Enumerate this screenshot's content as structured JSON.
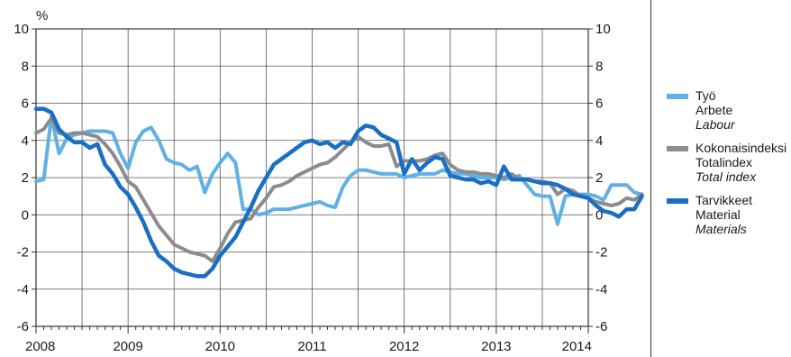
{
  "chart_data": {
    "type": "line",
    "unit": "%",
    "ylim": [
      -6,
      10
    ],
    "y_ticks": [
      -6,
      -4,
      -2,
      0,
      2,
      4,
      6,
      8,
      10
    ],
    "x_tick_labels": [
      "2008",
      "2009",
      "2010",
      "2011",
      "2012",
      "2013",
      "2014"
    ],
    "x_start_year": 2008,
    "months_per_point": 1,
    "grid": true,
    "legend_position": "right",
    "series": [
      {
        "id": "labour",
        "name": "Työ",
        "name_sv": "Arbete",
        "name_en": "Labour",
        "color": "#5fb0e6",
        "values": [
          1.8,
          1.9,
          5.3,
          3.3,
          4.1,
          4.3,
          4.4,
          4.5,
          4.5,
          4.5,
          4.4,
          3.3,
          2.5,
          3.9,
          4.5,
          4.7,
          4.0,
          3.0,
          2.8,
          2.7,
          2.4,
          2.6,
          1.2,
          2.2,
          2.8,
          3.3,
          2.8,
          0.3,
          0.3,
          0.0,
          0.1,
          0.3,
          0.3,
          0.3,
          0.4,
          0.5,
          0.6,
          0.7,
          0.5,
          0.4,
          1.5,
          2.1,
          2.4,
          2.4,
          2.3,
          2.2,
          2.2,
          2.2,
          2.0,
          2.1,
          2.2,
          2.2,
          2.2,
          2.4,
          2.3,
          2.2,
          2.2,
          2.1,
          2.0,
          2.0,
          2.0,
          1.9,
          2.0,
          2.1,
          1.6,
          1.1,
          1.0,
          1.0,
          -0.5,
          1.0,
          1.1,
          1.1,
          1.1,
          1.0,
          0.8,
          1.6,
          1.6,
          1.6,
          1.2,
          1.1
        ]
      },
      {
        "id": "total",
        "name": "Kokonaisindeksi",
        "name_sv": "Totalindex",
        "name_en": "Total index",
        "color": "#8c8c8c",
        "values": [
          4.4,
          4.6,
          5.2,
          4.4,
          4.3,
          4.4,
          4.4,
          4.3,
          4.2,
          3.8,
          3.3,
          2.6,
          1.8,
          1.5,
          0.8,
          0.1,
          -0.6,
          -1.1,
          -1.6,
          -1.8,
          -2.0,
          -2.1,
          -2.2,
          -2.5,
          -1.8,
          -1.0,
          -0.4,
          -0.3,
          -0.2,
          0.4,
          0.9,
          1.5,
          1.6,
          1.8,
          2.1,
          2.3,
          2.5,
          2.7,
          2.8,
          3.1,
          3.5,
          3.9,
          4.2,
          3.9,
          3.7,
          3.7,
          3.8,
          2.6,
          2.9,
          2.9,
          2.9,
          3.0,
          3.2,
          3.3,
          2.7,
          2.4,
          2.3,
          2.3,
          2.2,
          2.2,
          2.1,
          2.0,
          2.2,
          1.9,
          1.9,
          1.8,
          1.8,
          1.7,
          1.1,
          1.4,
          1.3,
          1.0,
          0.9,
          0.7,
          0.6,
          0.5,
          0.6,
          0.9,
          0.8,
          1.1
        ]
      },
      {
        "id": "materials",
        "name": "Tarvikkeet",
        "name_sv": "Material",
        "name_en": "Materials",
        "color": "#1a6fc4",
        "values": [
          5.7,
          5.7,
          5.5,
          4.6,
          4.2,
          3.9,
          3.9,
          3.6,
          3.8,
          2.7,
          2.2,
          1.5,
          1.1,
          0.4,
          -0.4,
          -1.4,
          -2.2,
          -2.5,
          -2.9,
          -3.1,
          -3.2,
          -3.3,
          -3.3,
          -2.9,
          -2.2,
          -1.7,
          -1.2,
          -0.4,
          0.4,
          1.3,
          2.0,
          2.7,
          3.0,
          3.3,
          3.6,
          3.9,
          4.0,
          3.8,
          3.9,
          3.6,
          3.9,
          3.8,
          4.5,
          4.8,
          4.7,
          4.3,
          4.1,
          3.9,
          2.2,
          3.0,
          2.4,
          2.8,
          3.1,
          3.0,
          2.1,
          2.0,
          1.9,
          1.9,
          1.7,
          1.8,
          1.6,
          2.6,
          1.9,
          1.9,
          1.9,
          1.8,
          1.7,
          1.7,
          1.6,
          1.4,
          1.1,
          1.0,
          0.9,
          0.5,
          0.2,
          0.1,
          -0.1,
          0.3,
          0.3,
          1.0
        ]
      }
    ]
  }
}
